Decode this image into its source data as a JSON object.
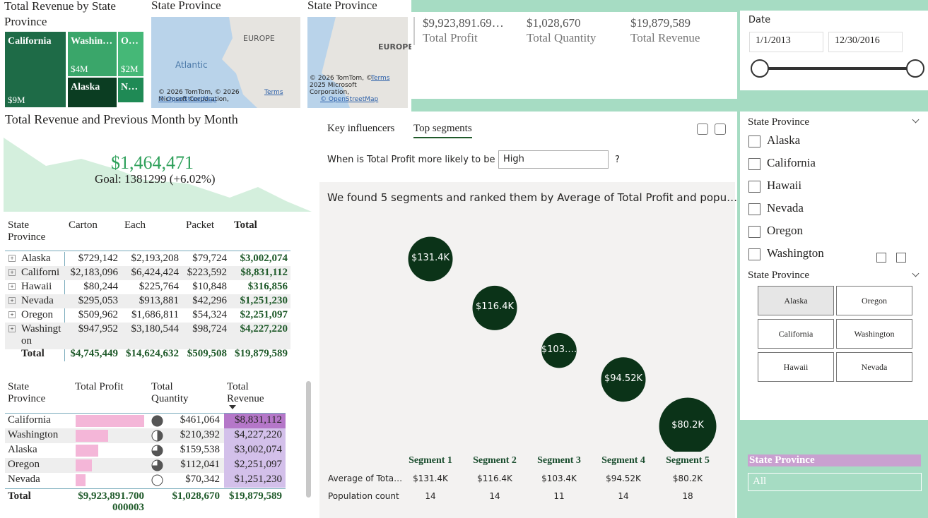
{
  "treemap": {
    "title": "Total Revenue by State Province",
    "tiles": [
      {
        "name": "California",
        "label": "$9M"
      },
      {
        "name": "Washin…",
        "label": "$4M"
      },
      {
        "name": "O…",
        "label": "$2M"
      },
      {
        "name": "Alaska"
      },
      {
        "name": "N…"
      }
    ]
  },
  "maps": [
    {
      "title": "State Province",
      "sea": "Atlantic",
      "region": "EUROPE",
      "attribution": "© 2026 TomTom, © 2026 Microsoft Corporation,",
      "osm": "© OpenStreetMap",
      "terms": "Terms"
    },
    {
      "title": "State Province",
      "region": "EUROPE",
      "attribution": "© 2026 TomTom, © 2025 Microsoft Corporation,",
      "osm": "© OpenStreetMap",
      "terms": "Terms"
    }
  ],
  "cards": [
    {
      "value": "$9,923,891.69…",
      "label": "Total Profit"
    },
    {
      "value": "$1,028,670",
      "label": "Total Quantity"
    },
    {
      "value": "$19,879,589",
      "label": "Total Revenue"
    }
  ],
  "date_slicer": {
    "title": "Date",
    "start": "1/1/2013",
    "end": "12/30/2016"
  },
  "kpi": {
    "title": "Total Revenue and Previous Month by Month",
    "value": "$1,464,471",
    "goal": "Goal: 1381299 (+6.02%)"
  },
  "matrix": {
    "headers": [
      "State Province",
      "Carton",
      "Each",
      "Packet",
      "Total"
    ],
    "rows": [
      [
        "Alaska",
        "$729,142",
        "$2,193,208",
        "$79,724",
        "$3,002,074"
      ],
      [
        "Californi",
        "$2,183,096",
        "$6,424,424",
        "$223,592",
        "$8,831,112"
      ],
      [
        "Hawaii",
        "$80,244",
        "$225,764",
        "$10,848",
        "$316,856"
      ],
      [
        "Nevada",
        "$295,053",
        "$913,881",
        "$42,296",
        "$1,251,230"
      ],
      [
        "Oregon",
        "$509,962",
        "$1,686,811",
        "$54,324",
        "$2,251,097"
      ],
      [
        "Washington",
        "$947,952",
        "$3,180,544",
        "$98,724",
        "$4,227,220"
      ]
    ],
    "total": [
      "Total",
      "$4,745,449",
      "$14,624,632",
      "$509,508",
      "$19,879,589"
    ]
  },
  "table": {
    "headers": [
      "State Province",
      "Total Profit",
      "Total Quantity",
      "Total Revenue"
    ],
    "rows": [
      {
        "name": "California",
        "profit": 4490000,
        "quantity_icon": 1,
        "quantity": "$461,064",
        "revenue": "$8,831,112"
      },
      {
        "name": "Washington",
        "profit": 2110000,
        "quantity_icon": 0.5,
        "quantity": "$210,392",
        "revenue": "$4,227,220"
      },
      {
        "name": "Alaska",
        "profit": 1480000,
        "quantity_icon": 0.75,
        "quantity": "$159,538",
        "revenue": "$3,002,074"
      },
      {
        "name": "Oregon",
        "profit": 1080000,
        "quantity_icon": 0.75,
        "quantity": "$112,041",
        "revenue": "$2,251,097"
      },
      {
        "name": "Nevada",
        "profit": 630000,
        "quantity_icon": 0,
        "quantity": "$70,342",
        "revenue": "$1,251,230"
      }
    ],
    "total": {
      "name": "Total",
      "profit": "$9,923,891.700000003",
      "quantity": "$1,028,670",
      "revenue": "$19,879,589"
    }
  },
  "influencers": {
    "tabs": [
      "Key influencers",
      "Top segments"
    ],
    "question": "When is Total Profit more likely to be",
    "option": "High",
    "help": "?",
    "summary": "We found 5 segments and ranked them by Average of Total Profit and popu…",
    "row_labels": [
      "Average of Tota…",
      "Population count"
    ],
    "segments": [
      {
        "name": "Segment 1",
        "bubble": "$131.4K",
        "average": {
          "value": 131400,
          "label": "$131.4K"
        },
        "count": 14
      },
      {
        "name": "Segment 2",
        "bubble": "$116.4K",
        "average": {
          "value": 116400,
          "label": "$116.4K"
        },
        "count": 14
      },
      {
        "name": "Segment 3",
        "bubble": "$103….",
        "average": {
          "value": 103400,
          "label": "$103.4K"
        },
        "count": 11
      },
      {
        "name": "Segment 4",
        "bubble": "$94.52K",
        "average": {
          "value": 94520,
          "label": "$94.52K"
        },
        "count": 14
      },
      {
        "name": "Segment 5",
        "bubble": "$80.2K",
        "average": {
          "value": 80200,
          "label": "$80.2K"
        },
        "count": 18
      }
    ]
  },
  "state_list": {
    "title": "State Province",
    "items": [
      "Alaska",
      "California",
      "Hawaii",
      "Nevada",
      "Oregon",
      "Washington"
    ]
  },
  "state_tiles": {
    "title": "State Province",
    "items": [
      "Alaska",
      "Oregon",
      "California",
      "Washington",
      "Hawaii",
      "Nevada"
    ],
    "selected": 0
  },
  "state_dropdown": {
    "title": "State Province",
    "value": "All"
  }
}
